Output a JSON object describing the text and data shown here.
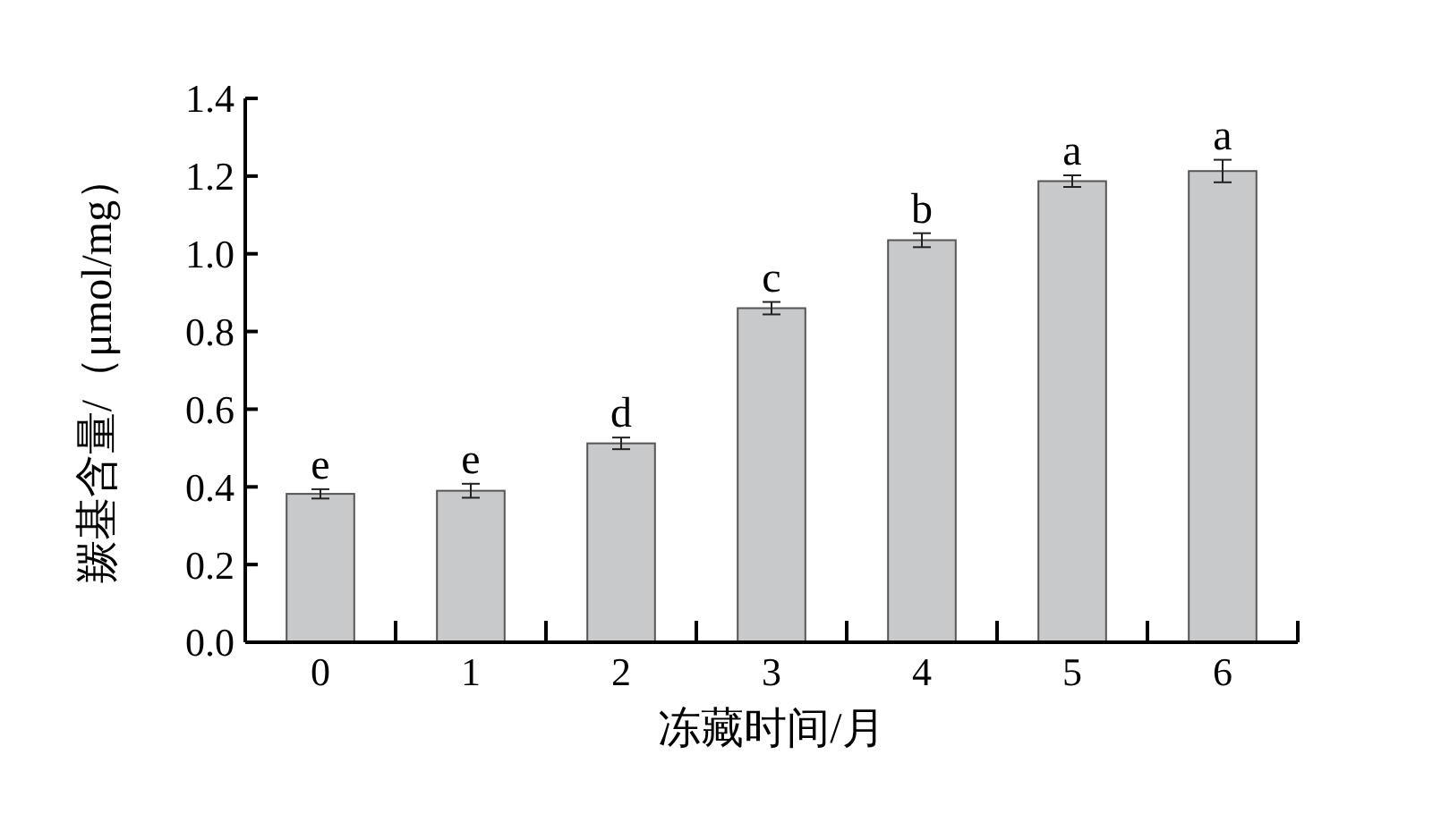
{
  "chart_data": {
    "type": "bar",
    "xlabel": "冻藏时间/月",
    "ylabel": "羰基含量/（μmol/mg）",
    "categories": [
      "0",
      "1",
      "2",
      "3",
      "4",
      "5",
      "6"
    ],
    "values": [
      0.382,
      0.39,
      0.512,
      0.86,
      1.035,
      1.187,
      1.213
    ],
    "errors": [
      0.012,
      0.018,
      0.015,
      0.016,
      0.018,
      0.015,
      0.029
    ],
    "color": "#c8c9cb",
    "ylim": [
      0,
      1.4
    ],
    "yticks": [
      {
        "value": 0,
        "label": "0.0"
      },
      {
        "value": 0.2,
        "label": "0.2"
      },
      {
        "value": 0.4,
        "label": "0.4"
      },
      {
        "value": 0.6,
        "label": "0.6"
      },
      {
        "value": 0.8,
        "label": "0.8"
      },
      {
        "value": 1.0,
        "label": "1.0"
      },
      {
        "value": 1.2,
        "label": "1.2"
      },
      {
        "value": 1.4,
        "label": "1.4"
      }
    ],
    "annotations": [
      {
        "text": "e",
        "x": "0",
        "y": 0.394
      },
      {
        "text": "e",
        "x": "1",
        "y": 0.408
      },
      {
        "text": "d",
        "x": "2",
        "y": 0.527
      },
      {
        "text": "c",
        "x": "3",
        "y": 0.876
      },
      {
        "text": "b",
        "x": "4",
        "y": 1.053
      },
      {
        "text": "a",
        "x": "5",
        "y": 1.202
      },
      {
        "text": "a",
        "x": "6",
        "y": 1.242
      }
    ],
    "grid": false
  }
}
